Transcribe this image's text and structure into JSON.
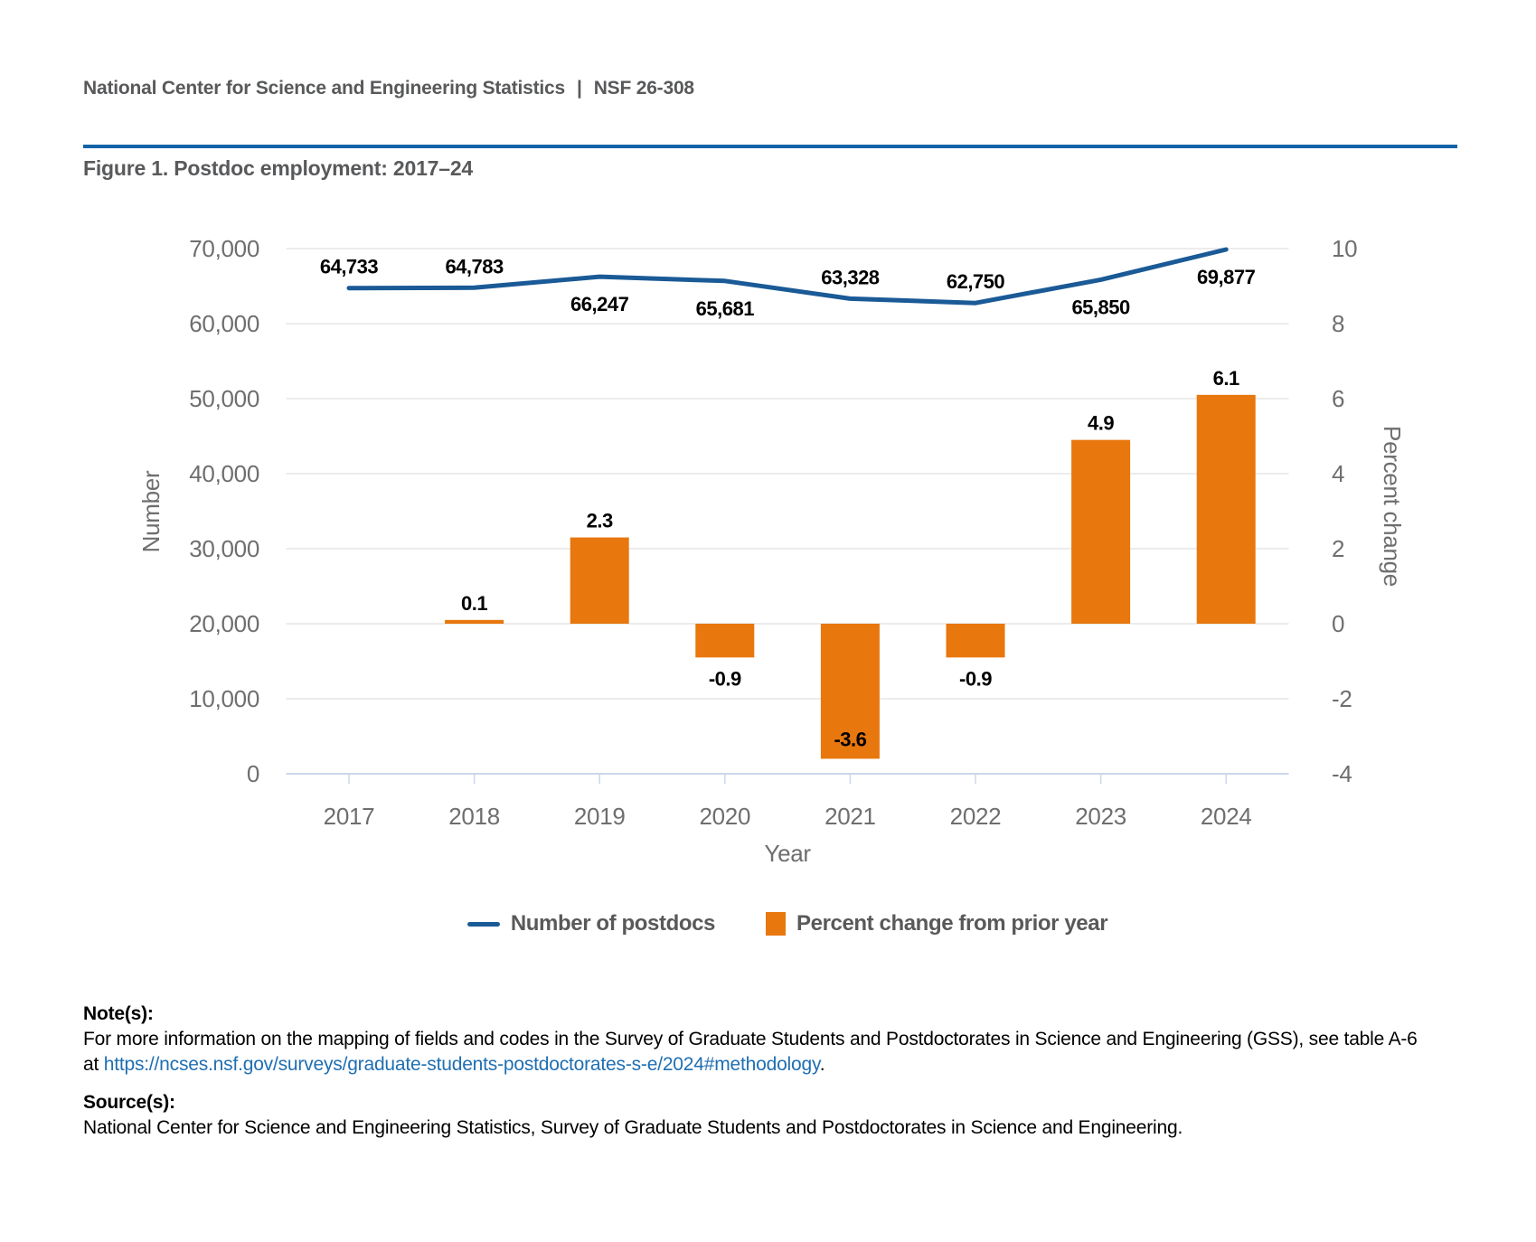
{
  "header": {
    "org": "National Center for Science and Engineering Statistics",
    "separator": "|",
    "report_number": "NSF 26-308"
  },
  "figure": {
    "title": "Figure 1. Postdoc employment: 2017–24"
  },
  "chart_data": {
    "type": "combo-line-bar",
    "categories": [
      "2017",
      "2018",
      "2019",
      "2020",
      "2021",
      "2022",
      "2023",
      "2024"
    ],
    "x_axis": {
      "title": "Year"
    },
    "y_axis_left": {
      "title": "Number",
      "min": 0,
      "max": 70000,
      "tick_interval": 10000,
      "tick_labels": [
        "70,000",
        "60,000",
        "50,000",
        "40,000",
        "30,000",
        "20,000",
        "10,000",
        "0"
      ]
    },
    "y_axis_right": {
      "title": "Percent change",
      "min": -4,
      "max": 10,
      "tick_interval": 2,
      "tick_labels": [
        "10",
        "8",
        "6",
        "4",
        "2",
        "0",
        "-2",
        "-4"
      ]
    },
    "grid": "horizontal",
    "series": [
      {
        "name": "Number of postdocs",
        "type": "line",
        "axis": "left",
        "color": "#1A5A96",
        "points": [
          {
            "category": "2017",
            "value": 64733,
            "label": "64,733",
            "label_pos": "above"
          },
          {
            "category": "2018",
            "value": 64783,
            "label": "64,783",
            "label_pos": "above"
          },
          {
            "category": "2019",
            "value": 66247,
            "label": "66,247",
            "label_pos": "below"
          },
          {
            "category": "2020",
            "value": 65681,
            "label": "65,681",
            "label_pos": "below"
          },
          {
            "category": "2021",
            "value": 63328,
            "label": "63,328",
            "label_pos": "above"
          },
          {
            "category": "2022",
            "value": 62750,
            "label": "62,750",
            "label_pos": "above"
          },
          {
            "category": "2023",
            "value": 65850,
            "label": "65,850",
            "label_pos": "below"
          },
          {
            "category": "2024",
            "value": 69877,
            "label": "69,877",
            "label_pos": "below"
          }
        ]
      },
      {
        "name": "Percent change from prior year",
        "type": "bar",
        "axis": "right",
        "color": "#E8770E",
        "points": [
          {
            "category": "2018",
            "value": 0.1,
            "label": "0.1",
            "label_pos": "above"
          },
          {
            "category": "2019",
            "value": 2.3,
            "label": "2.3",
            "label_pos": "above"
          },
          {
            "category": "2020",
            "value": -0.9,
            "label": "-0.9",
            "label_pos": "below"
          },
          {
            "category": "2021",
            "value": -3.6,
            "label": "-3.6",
            "label_pos": "inside"
          },
          {
            "category": "2022",
            "value": -0.9,
            "label": "-0.9",
            "label_pos": "below"
          },
          {
            "category": "2023",
            "value": 4.9,
            "label": "4.9",
            "label_pos": "above"
          },
          {
            "category": "2024",
            "value": 6.1,
            "label": "6.1",
            "label_pos": "above"
          }
        ]
      }
    ],
    "legend": {
      "position": "bottom",
      "items": [
        {
          "label": "Number of postdocs",
          "swatch": "line",
          "color": "#1A5A96"
        },
        {
          "label": "Percent change from prior year",
          "swatch": "bar",
          "color": "#E8770E"
        }
      ]
    }
  },
  "notes": {
    "heading": "Note(s):",
    "line1": "For more information on the mapping of fields and codes in the Survey of Graduate Students and Postdoctorates in Science and Engineering (GSS), see table A-6",
    "line2_prefix": "at ",
    "link": "https://ncses.nsf.gov/surveys/graduate-students-postdoctorates-s-e/2024#methodology",
    "line2_suffix": "."
  },
  "source": {
    "heading": "Source(s):",
    "text": "National Center for Science and Engineering Statistics, Survey of Graduate Students and Postdoctorates in Science and Engineering."
  },
  "colors": {
    "divider": "#1263A8",
    "line": "#1A5A96",
    "bar": "#E8770E",
    "link": "#1F6FB2",
    "gridline": "#E6E6E6",
    "axis_line": "#CCD6EB",
    "heading_gray": "#58595B",
    "tick_gray": "#6E6E6E"
  }
}
